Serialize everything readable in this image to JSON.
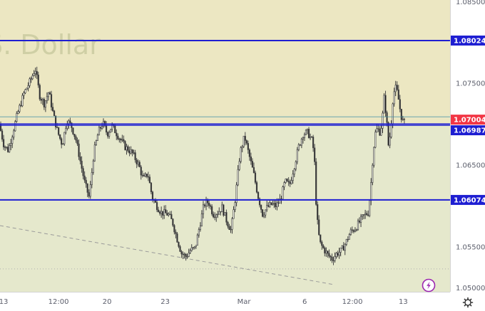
{
  "chart_data": {
    "type": "candlestick",
    "watermark": {
      "line1": "",
      "line2": "S. Dollar"
    },
    "y_axis": {
      "position": "right",
      "ylim": [
        1.0495,
        1.0852
      ],
      "tick_labels": [
        "1.08500",
        "1.07500",
        "1.06500",
        "1.05500",
        "1.05000"
      ]
    },
    "x_axis": {
      "tick_labels": [
        "13",
        "12:00",
        "20",
        "23",
        "Mar",
        "6",
        "12:00",
        "13"
      ]
    },
    "horizontal_lines": [
      {
        "value": 1.08024,
        "label": "1.08024",
        "color": "#1e1ed2"
      },
      {
        "value": 1.07004,
        "label": "1.07004",
        "color": "#1e1ed2"
      },
      {
        "value": 1.06987,
        "label": "1.06987",
        "color": "#1e1ed2"
      },
      {
        "value": 1.06074,
        "label": "1.06074",
        "color": "#1e1ed2"
      }
    ],
    "current_price": {
      "value": 1.07004,
      "label": "1.07004",
      "color": "#f23645"
    },
    "trendline": {
      "from": [
        0,
        1.0576
      ],
      "to": [
        0.74,
        1.0504
      ],
      "style": "dashed",
      "color": "#9a9a9a"
    },
    "dotted_level": {
      "value": 1.0523,
      "color": "#b0b0b0"
    },
    "zones": {
      "upper_color": "#ece7c2",
      "lower_color": "#e5e8cc",
      "boundary": 1.07
    },
    "price_path": [
      [
        0.0,
        1.07
      ],
      [
        0.01,
        1.0675
      ],
      [
        0.02,
        1.0668
      ],
      [
        0.03,
        1.069
      ],
      [
        0.04,
        1.0712
      ],
      [
        0.055,
        1.0738
      ],
      [
        0.068,
        1.0752
      ],
      [
        0.08,
        1.0768
      ],
      [
        0.09,
        1.0735
      ],
      [
        0.1,
        1.0725
      ],
      [
        0.11,
        1.074
      ],
      [
        0.12,
        1.0712
      ],
      [
        0.13,
        1.069
      ],
      [
        0.14,
        1.0675
      ],
      [
        0.15,
        1.0705
      ],
      [
        0.16,
        1.0698
      ],
      [
        0.17,
        1.0682
      ],
      [
        0.18,
        1.0655
      ],
      [
        0.19,
        1.0628
      ],
      [
        0.2,
        1.061
      ],
      [
        0.21,
        1.0665
      ],
      [
        0.22,
        1.069
      ],
      [
        0.23,
        1.0702
      ],
      [
        0.24,
        1.0688
      ],
      [
        0.25,
        1.0698
      ],
      [
        0.265,
        1.0685
      ],
      [
        0.28,
        1.0672
      ],
      [
        0.295,
        1.0665
      ],
      [
        0.31,
        1.065
      ],
      [
        0.32,
        1.0632
      ],
      [
        0.33,
        1.064
      ],
      [
        0.34,
        1.061
      ],
      [
        0.35,
        1.06
      ],
      [
        0.36,
        1.0592
      ],
      [
        0.375,
        1.059
      ],
      [
        0.385,
        1.058
      ],
      [
        0.395,
        1.056
      ],
      [
        0.405,
        1.0542
      ],
      [
        0.415,
        1.0538
      ],
      [
        0.425,
        1.0546
      ],
      [
        0.435,
        1.0548
      ],
      [
        0.445,
        1.0575
      ],
      [
        0.455,
        1.0602
      ],
      [
        0.465,
        1.0605
      ],
      [
        0.475,
        1.059
      ],
      [
        0.485,
        1.0592
      ],
      [
        0.495,
        1.0598
      ],
      [
        0.505,
        1.0582
      ],
      [
        0.515,
        1.057
      ],
      [
        0.525,
        1.0612
      ],
      [
        0.535,
        1.0665
      ],
      [
        0.545,
        1.0685
      ],
      [
        0.555,
        1.0662
      ],
      [
        0.565,
        1.064
      ],
      [
        0.575,
        1.0612
      ],
      [
        0.585,
        1.059
      ],
      [
        0.595,
        1.0598
      ],
      [
        0.605,
        1.0602
      ],
      [
        0.615,
        1.06
      ],
      [
        0.625,
        1.0608
      ],
      [
        0.635,
        1.063
      ],
      [
        0.645,
        1.0625
      ],
      [
        0.655,
        1.0648
      ],
      [
        0.665,
        1.0672
      ],
      [
        0.675,
        1.0688
      ],
      [
        0.685,
        1.069
      ],
      [
        0.695,
        1.068
      ],
      [
        0.7,
        1.0662
      ],
      [
        0.705,
        1.059
      ],
      [
        0.712,
        1.0555
      ],
      [
        0.72,
        1.0548
      ],
      [
        0.73,
        1.054
      ],
      [
        0.74,
        1.0535
      ],
      [
        0.75,
        1.0542
      ],
      [
        0.76,
        1.0545
      ],
      [
        0.77,
        1.0555
      ],
      [
        0.78,
        1.0568
      ],
      [
        0.79,
        1.0572
      ],
      [
        0.8,
        1.058
      ],
      [
        0.81,
        1.0588
      ],
      [
        0.82,
        1.0592
      ],
      [
        0.825,
        1.062
      ],
      [
        0.83,
        1.066
      ],
      [
        0.835,
        1.0688
      ],
      [
        0.84,
        1.0695
      ],
      [
        0.845,
        1.069
      ],
      [
        0.85,
        1.07
      ],
      [
        0.855,
        1.0732
      ],
      [
        0.86,
        1.071
      ],
      [
        0.865,
        1.0672
      ],
      [
        0.87,
        1.0695
      ],
      [
        0.875,
        1.0735
      ],
      [
        0.88,
        1.0745
      ],
      [
        0.885,
        1.0738
      ],
      [
        0.89,
        1.072
      ],
      [
        0.895,
        1.0705
      ],
      [
        0.9,
        1.0702
      ]
    ]
  }
}
